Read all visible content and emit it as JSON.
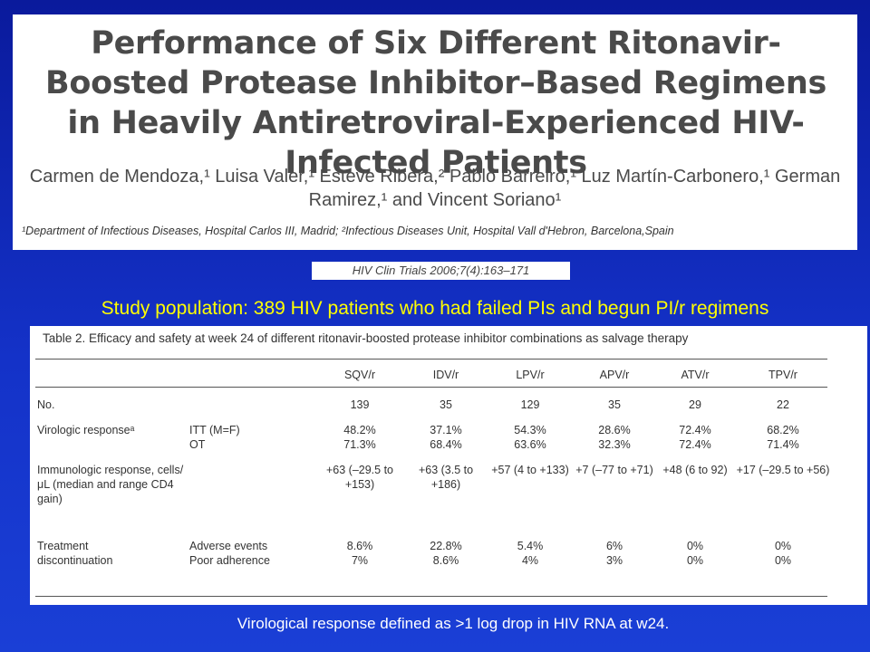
{
  "paper": {
    "title": "Performance of Six Different Ritonavir-Boosted Protease Inhibitor–Based Regimens in Heavily Antiretroviral-Experienced HIV-Infected Patients",
    "authors": "Carmen de Mendoza,¹ Luisa Valer,¹ Esteve Ribera,² Pablo Barreiro,¹ Luz Martín-Carbonero,¹ German Ramirez,¹ and Vincent Soriano¹",
    "affiliations": "¹Department of Infectious Diseases, Hospital Carlos III, Madrid; ²Infectious Diseases Unit, Hospital Vall d'Hebron, Barcelona,Spain"
  },
  "citation": "HIV Clin Trials 2006;7(4):163–171",
  "study_population": "Study population: 389 HIV patients who had failed PIs and begun PI/r regimens",
  "table": {
    "title": "Table 2. Efficacy and safety at week 24 of different ritonavir-boosted protease inhibitor combinations as salvage therapy",
    "columns": [
      "SQV/r",
      "IDV/r",
      "LPV/r",
      "APV/r",
      "ATV/r",
      "TPV/r"
    ],
    "rows": [
      {
        "label": "No.",
        "sub": "",
        "values": [
          "139",
          "35",
          "129",
          "35",
          "29",
          "22"
        ]
      },
      {
        "label": "Virologic responseᵃ",
        "sub": "ITT (M=F)",
        "values": [
          "48.2%",
          "37.1%",
          "54.3%",
          "28.6%",
          "72.4%",
          "68.2%"
        ]
      },
      {
        "label": "",
        "sub": "OT",
        "values": [
          "71.3%",
          "68.4%",
          "63.6%",
          "32.3%",
          "72.4%",
          "71.4%"
        ]
      },
      {
        "label": "Immunologic response, cells/μL (median and range CD4 gain)",
        "sub": "",
        "values": [
          "+63 (–29.5 to +153)",
          "+63 (3.5 to +186)",
          "+57 (4 to +133)",
          "+7 (–77 to +71)",
          "+48 (6 to 92)",
          "+17 (–29.5 to +56)"
        ]
      },
      {
        "label": "Treatment",
        "sub": "Adverse events",
        "values": [
          "8.6%",
          "22.8%",
          "5.4%",
          "6%",
          "0%",
          "0%"
        ]
      },
      {
        "label": "discontinuation",
        "sub": "Poor adherence",
        "values": [
          "7%",
          "8.6%",
          "4%",
          "3%",
          "0%",
          "0%"
        ]
      }
    ]
  },
  "footnote": "Virological response defined as >1 log drop in HIV RNA at w24."
}
